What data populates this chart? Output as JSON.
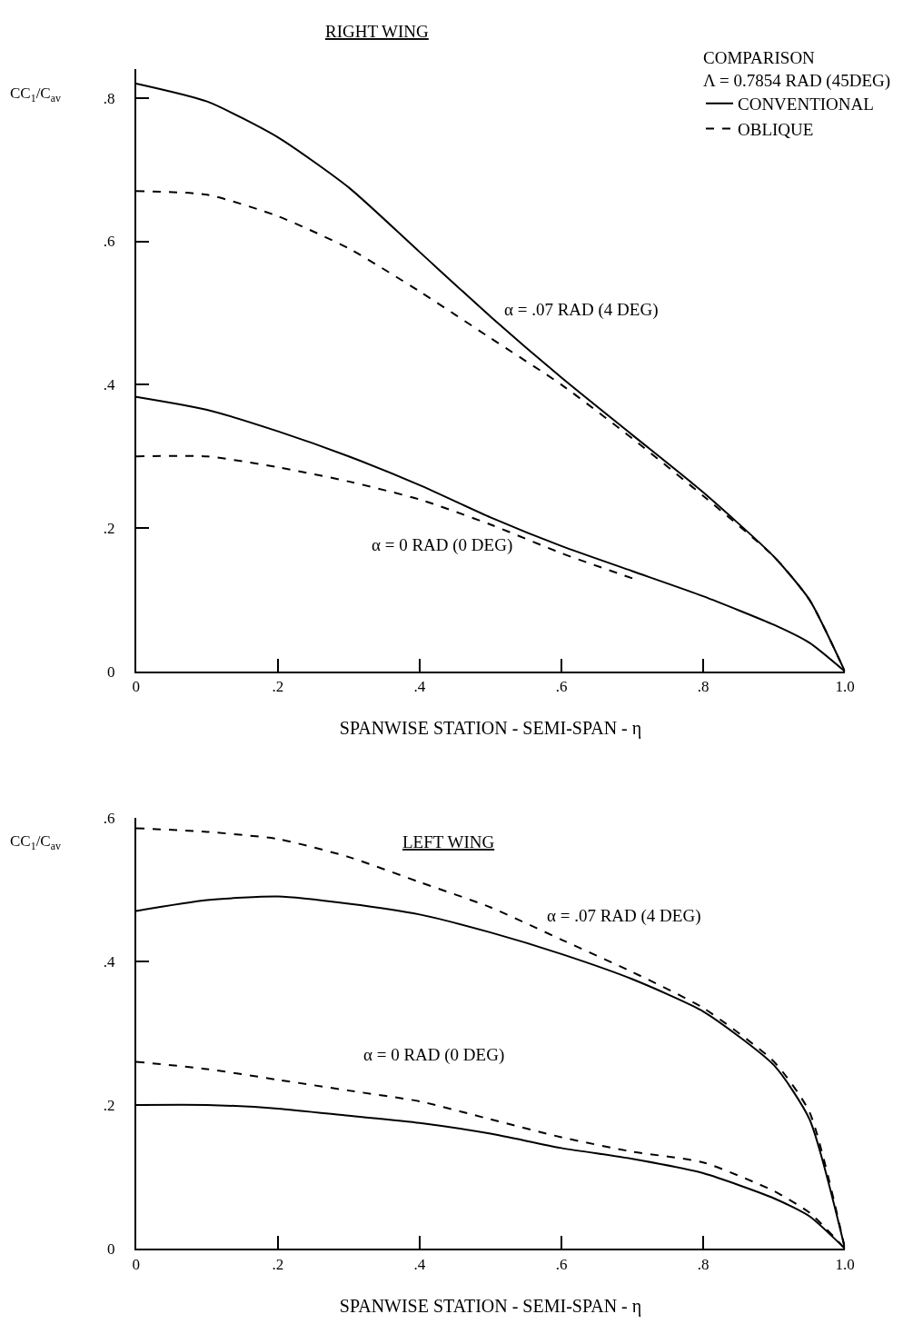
{
  "chart_data": [
    {
      "type": "line",
      "title": "RIGHT WING",
      "xlabel": "SPANWISE STATION - SEMI-SPAN - η",
      "ylabel": "CC$_{1}$/C$_{av}$",
      "legend_title": "COMPARISON",
      "legend": "top right",
      "x": [
        0,
        0.1,
        0.2,
        0.3,
        0.4,
        0.5,
        0.6,
        0.7,
        0.8,
        0.9,
        0.95,
        1.0
      ],
      "xlim": [
        0,
        1.0
      ],
      "xticks": [
        {
          "value": 0,
          "label": "0"
        },
        {
          "value": 0.2,
          "label": ".2"
        },
        {
          "value": 0.4,
          "label": ".4"
        },
        {
          "value": 0.6,
          "label": ".6"
        },
        {
          "value": 0.8,
          "label": ".8"
        },
        {
          "value": 1.0,
          "label": "1.0"
        }
      ],
      "ylim": [
        0,
        0.84
      ],
      "yticks": [
        {
          "value": 0,
          "label": "0"
        },
        {
          "value": 0.2,
          "label": ".2"
        },
        {
          "value": 0.4,
          "label": ".4"
        },
        {
          "value": 0.6,
          "label": ".6"
        },
        {
          "value": 0.8,
          "label": ".8"
        }
      ],
      "series": [
        {
          "name": "CONVENTIONAL",
          "color": "#000000",
          "line_style": "solid",
          "values": [
            0.82,
            0.795,
            0.745,
            0.675,
            0.585,
            0.495,
            0.41,
            0.33,
            0.25,
            0.16,
            0.1,
            0
          ]
        },
        {
          "name": "OBLIQUE",
          "color": "#000000",
          "line_style": "dashed",
          "values": [
            0.67,
            0.665,
            0.635,
            0.59,
            0.53,
            0.465,
            0.4,
            0.325,
            0.245,
            0.16,
            0.1,
            0
          ]
        },
        {
          "color": "#000000",
          "line_style": "solid",
          "values": [
            0.383,
            0.365,
            0.335,
            0.3,
            0.26,
            0.215,
            0.175,
            0.14,
            0.105,
            0.065,
            0.04,
            0
          ]
        },
        {
          "color": "#000000",
          "line_style": "dashed",
          "values": [
            0.3,
            0.3,
            0.285,
            0.265,
            0.24,
            0.205,
            0.165,
            0.13,
            null,
            null,
            null,
            null
          ]
        }
      ],
      "annotations": [
        "Λ = 0.7854 RAD (45DEG)",
        "α = .07 RAD (4 DEG)",
        "α = 0 RAD (0 DEG)"
      ]
    },
    {
      "type": "line",
      "title": "LEFT WING",
      "xlabel": "SPANWISE STATION - SEMI-SPAN - η",
      "ylabel": "CC$_{1}$/C$_{av}$",
      "x": [
        0,
        0.1,
        0.2,
        0.3,
        0.4,
        0.5,
        0.6,
        0.7,
        0.8,
        0.9,
        0.95,
        1.0
      ],
      "xlim": [
        0,
        1.0
      ],
      "xticks": [
        {
          "value": 0,
          "label": "0"
        },
        {
          "value": 0.2,
          "label": ".2"
        },
        {
          "value": 0.4,
          "label": ".4"
        },
        {
          "value": 0.6,
          "label": ".6"
        },
        {
          "value": 0.8,
          "label": ".8"
        },
        {
          "value": 1.0,
          "label": "1.0"
        }
      ],
      "ylim": [
        0,
        0.6
      ],
      "yticks": [
        {
          "value": 0,
          "label": "0"
        },
        {
          "value": 0.2,
          "label": ".2"
        },
        {
          "value": 0.4,
          "label": ".4"
        },
        {
          "value": 0.6,
          "label": ".6"
        }
      ],
      "series": [
        {
          "color": "#000000",
          "line_style": "dashed",
          "values": [
            0.585,
            0.58,
            0.57,
            0.545,
            0.51,
            0.475,
            0.43,
            0.385,
            0.335,
            0.26,
            0.19,
            0
          ]
        },
        {
          "color": "#000000",
          "line_style": "solid",
          "values": [
            0.47,
            0.485,
            0.49,
            0.48,
            0.465,
            0.44,
            0.41,
            0.375,
            0.33,
            0.255,
            0.18,
            0
          ]
        },
        {
          "color": "#000000",
          "line_style": "dashed",
          "values": [
            0.26,
            0.25,
            0.235,
            0.22,
            0.205,
            0.18,
            0.155,
            0.135,
            0.12,
            0.08,
            0.05,
            0
          ]
        },
        {
          "color": "#000000",
          "line_style": "solid",
          "values": [
            0.2,
            0.2,
            0.195,
            0.185,
            0.175,
            0.16,
            0.14,
            0.125,
            0.105,
            0.07,
            0.045,
            0
          ]
        }
      ],
      "annotations": [
        "α = .07 RAD (4 DEG)",
        "α = 0 RAD (0 DEG)"
      ]
    }
  ]
}
